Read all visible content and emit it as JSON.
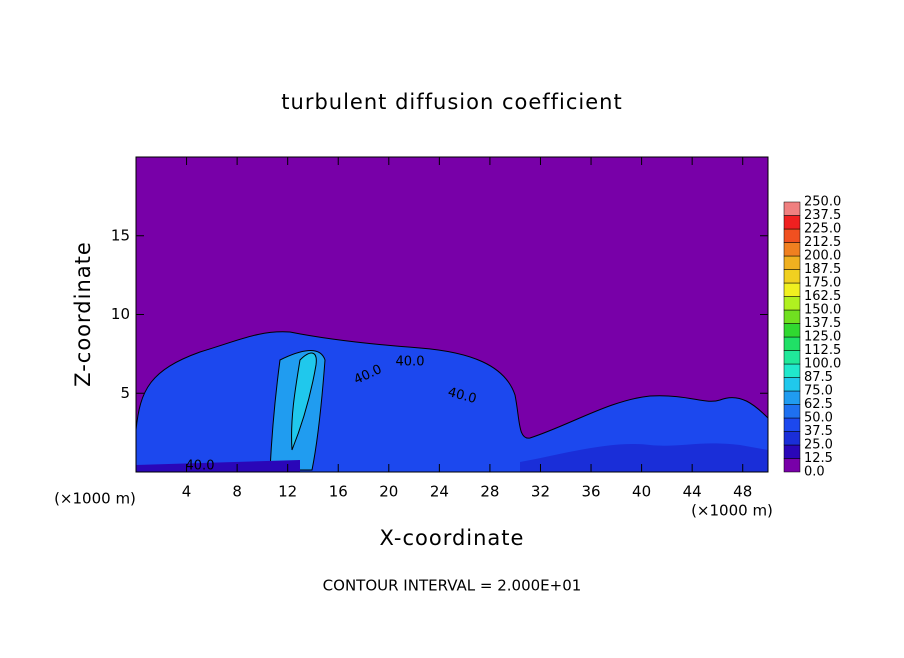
{
  "chart_data": {
    "type": "contour",
    "title": "turbulent diffusion coefficient",
    "x_label": "X-coordinate",
    "y_label": "Z-coordinate",
    "x_unit": "(×1000 m)",
    "xlim": [
      0,
      50
    ],
    "ylim": [
      0,
      20
    ],
    "xticks": [
      4,
      8,
      12,
      16,
      20,
      24,
      28,
      32,
      36,
      40,
      44,
      48
    ],
    "yticks": [
      5,
      10,
      15
    ],
    "contour_labels": [
      "40.0",
      "40.0",
      "40.0",
      "40.0"
    ],
    "note": "CONTOUR INTERVAL = 2.000E+01",
    "colorbar": {
      "levels": [
        {
          "value": 0,
          "label": "0.0"
        },
        {
          "value": 12.5,
          "label": "12.5"
        },
        {
          "value": 25,
          "label": "25.0"
        },
        {
          "value": 37.5,
          "label": "37.5"
        },
        {
          "value": 50,
          "label": "50.0"
        },
        {
          "value": 62.5,
          "label": "62.5"
        },
        {
          "value": 75,
          "label": "75.0"
        },
        {
          "value": 87.5,
          "label": "87.5"
        },
        {
          "value": 100,
          "label": "100.0"
        },
        {
          "value": 112.5,
          "label": "112.5"
        },
        {
          "value": 125,
          "label": "125.0"
        },
        {
          "value": 137.5,
          "label": "137.5"
        },
        {
          "value": 150,
          "label": "150.0"
        },
        {
          "value": 162.5,
          "label": "162.5"
        },
        {
          "value": 175,
          "label": "175.0"
        },
        {
          "value": 187.5,
          "label": "187.5"
        },
        {
          "value": 200,
          "label": "200.0"
        },
        {
          "value": 212.5,
          "label": "212.5"
        },
        {
          "value": 225,
          "label": "225.0"
        },
        {
          "value": 237.5,
          "label": "237.5"
        },
        {
          "value": 250,
          "label": "250.0"
        }
      ],
      "colors": [
        "#7800a8",
        "#2a06b8",
        "#1a2ed8",
        "#1c48ee",
        "#1e70f0",
        "#209cf0",
        "#20c8ec",
        "#20e8cc",
        "#20e89a",
        "#20e066",
        "#30d830",
        "#70e020",
        "#b0f020",
        "#f0f020",
        "#f0d020",
        "#f0b020",
        "#f08020",
        "#f05020",
        "#f02020",
        "#f08080"
      ]
    }
  }
}
